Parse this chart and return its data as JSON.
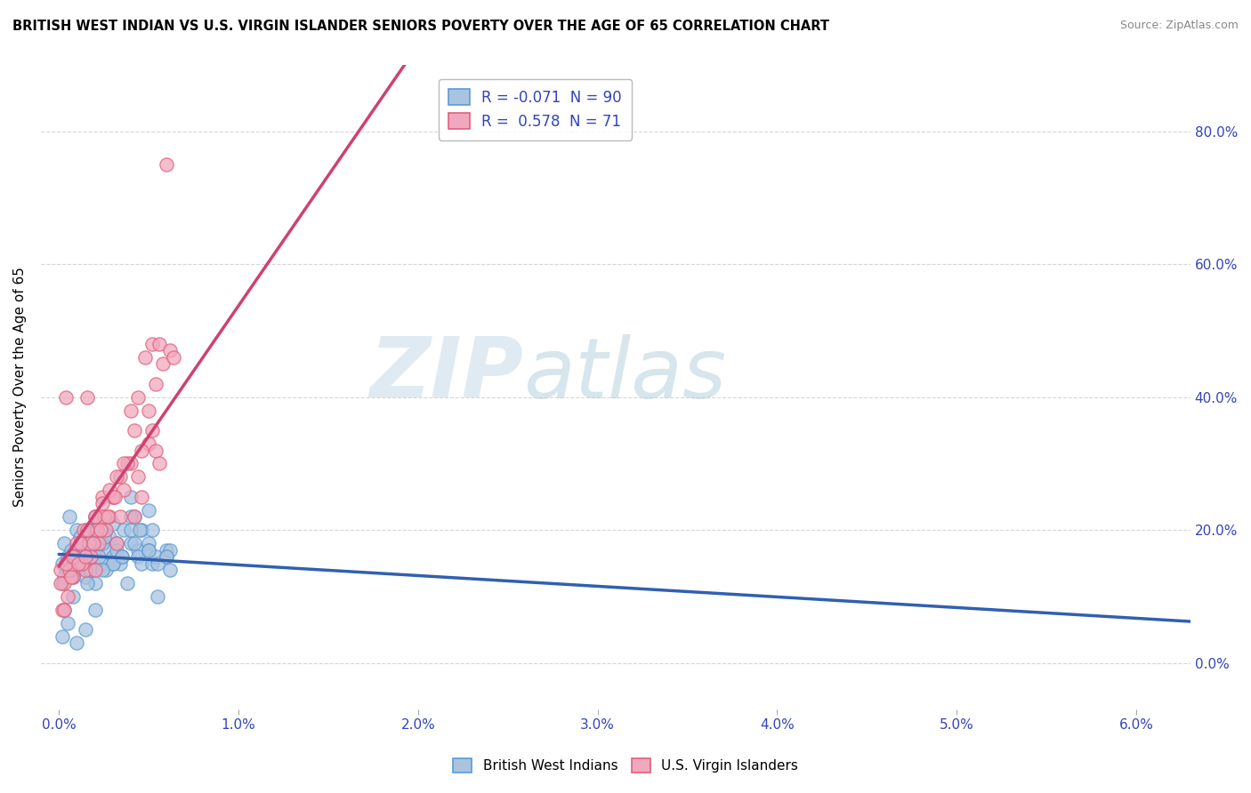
{
  "title": "BRITISH WEST INDIAN VS U.S. VIRGIN ISLANDER SENIORS POVERTY OVER THE AGE OF 65 CORRELATION CHART",
  "source": "Source: ZipAtlas.com",
  "ylabel": "Seniors Poverty Over the Age of 65",
  "xlim": [
    -0.001,
    0.063
  ],
  "ylim": [
    -0.07,
    0.9
  ],
  "xticks": [
    0.0,
    0.01,
    0.02,
    0.03,
    0.04,
    0.05,
    0.06
  ],
  "xticklabels": [
    "0.0%",
    "1.0%",
    "2.0%",
    "3.0%",
    "4.0%",
    "5.0%",
    "6.0%"
  ],
  "ytick_positions": [
    0.0,
    0.2,
    0.4,
    0.6,
    0.8
  ],
  "ytick_labels_right": [
    "0.0%",
    "20.0%",
    "40.0%",
    "60.0%",
    "80.0%"
  ],
  "watermark_zip": "ZIP",
  "watermark_atlas": "atlas",
  "blue_fill": "#aac4e0",
  "blue_edge": "#5b9bd5",
  "pink_fill": "#f0a8be",
  "pink_edge": "#e0607a",
  "blue_line_color": "#3060b0",
  "pink_line_color": "#d04070",
  "blue_x": [
    0.0002,
    0.0003,
    0.0005,
    0.0006,
    0.0008,
    0.0009,
    0.001,
    0.001,
    0.0012,
    0.0013,
    0.0014,
    0.0015,
    0.0016,
    0.0017,
    0.0018,
    0.002,
    0.002,
    0.0022,
    0.0024,
    0.0025,
    0.0026,
    0.0028,
    0.003,
    0.003,
    0.0032,
    0.0034,
    0.0036,
    0.004,
    0.004,
    0.0042,
    0.0044,
    0.0046,
    0.005,
    0.005,
    0.0052,
    0.006,
    0.0002,
    0.0004,
    0.0006,
    0.0007,
    0.0008,
    0.001,
    0.0012,
    0.0014,
    0.0016,
    0.0018,
    0.002,
    0.0022,
    0.0024,
    0.0026,
    0.003,
    0.0032,
    0.0035,
    0.004,
    0.0042,
    0.0044,
    0.0046,
    0.005,
    0.0052,
    0.0054,
    0.006,
    0.0062,
    0.0003,
    0.0005,
    0.0007,
    0.0009,
    0.0011,
    0.0013,
    0.0015,
    0.002,
    0.0025,
    0.003,
    0.0035,
    0.004,
    0.0045,
    0.005,
    0.0055,
    0.006,
    0.0062,
    0.0055,
    0.0038,
    0.002,
    0.0015,
    0.001,
    0.0005,
    0.0002,
    0.0003,
    0.0008,
    0.0016,
    0.0024
  ],
  "blue_y": [
    0.15,
    0.18,
    0.16,
    0.22,
    0.14,
    0.17,
    0.2,
    0.16,
    0.19,
    0.15,
    0.18,
    0.13,
    0.17,
    0.14,
    0.2,
    0.16,
    0.22,
    0.18,
    0.15,
    0.2,
    0.17,
    0.19,
    0.16,
    0.21,
    0.18,
    0.15,
    0.2,
    0.25,
    0.18,
    0.22,
    0.17,
    0.2,
    0.23,
    0.18,
    0.2,
    0.17,
    0.12,
    0.14,
    0.15,
    0.17,
    0.13,
    0.16,
    0.18,
    0.15,
    0.2,
    0.14,
    0.12,
    0.16,
    0.18,
    0.14,
    0.15,
    0.17,
    0.16,
    0.2,
    0.18,
    0.16,
    0.15,
    0.17,
    0.15,
    0.16,
    0.16,
    0.17,
    0.13,
    0.15,
    0.16,
    0.14,
    0.17,
    0.15,
    0.16,
    0.2,
    0.19,
    0.15,
    0.16,
    0.22,
    0.2,
    0.17,
    0.15,
    0.16,
    0.14,
    0.1,
    0.12,
    0.08,
    0.05,
    0.03,
    0.06,
    0.04,
    0.08,
    0.1,
    0.12,
    0.14
  ],
  "pink_x": [
    0.0001,
    0.0003,
    0.0004,
    0.0005,
    0.0007,
    0.0008,
    0.001,
    0.0012,
    0.0014,
    0.0015,
    0.0016,
    0.0018,
    0.002,
    0.002,
    0.0022,
    0.0024,
    0.0026,
    0.0028,
    0.003,
    0.0032,
    0.0034,
    0.0036,
    0.004,
    0.0042,
    0.0044,
    0.0046,
    0.005,
    0.0052,
    0.0054,
    0.0056,
    0.0002,
    0.0006,
    0.0009,
    0.0013,
    0.0017,
    0.0021,
    0.0025,
    0.003,
    0.0034,
    0.0038,
    0.0042,
    0.0046,
    0.005,
    0.0054,
    0.0058,
    0.0001,
    0.0004,
    0.0008,
    0.0012,
    0.0016,
    0.002,
    0.0024,
    0.0028,
    0.0032,
    0.0036,
    0.004,
    0.0044,
    0.0048,
    0.0052,
    0.0056,
    0.006,
    0.0062,
    0.0064,
    0.0003,
    0.0007,
    0.0011,
    0.0015,
    0.0019,
    0.0023,
    0.0027,
    0.0031
  ],
  "pink_y": [
    0.14,
    0.12,
    0.4,
    0.1,
    0.16,
    0.13,
    0.18,
    0.15,
    0.2,
    0.14,
    0.4,
    0.16,
    0.22,
    0.14,
    0.18,
    0.25,
    0.2,
    0.22,
    0.25,
    0.18,
    0.22,
    0.26,
    0.3,
    0.22,
    0.28,
    0.25,
    0.33,
    0.35,
    0.32,
    0.3,
    0.08,
    0.14,
    0.16,
    0.15,
    0.18,
    0.2,
    0.22,
    0.25,
    0.28,
    0.3,
    0.35,
    0.32,
    0.38,
    0.42,
    0.45,
    0.12,
    0.15,
    0.16,
    0.18,
    0.2,
    0.22,
    0.24,
    0.26,
    0.28,
    0.3,
    0.38,
    0.4,
    0.46,
    0.48,
    0.48,
    0.75,
    0.47,
    0.46,
    0.08,
    0.13,
    0.15,
    0.16,
    0.18,
    0.2,
    0.22,
    0.25
  ]
}
